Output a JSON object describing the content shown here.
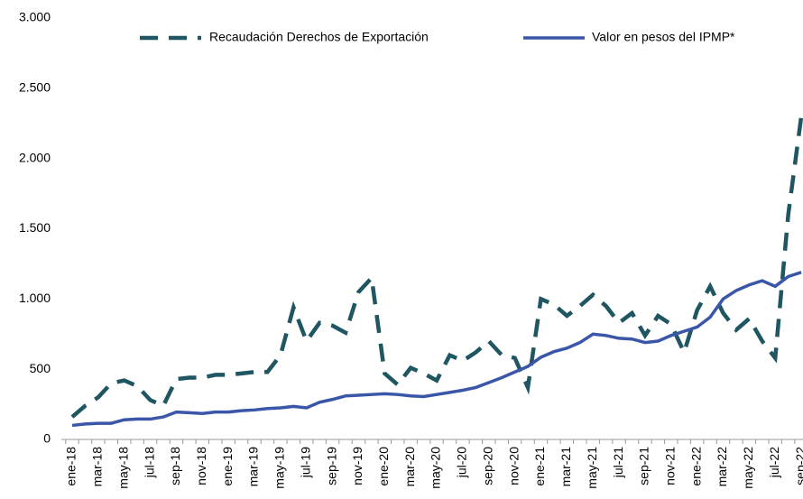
{
  "chart_data": {
    "type": "line",
    "categories": [
      "ene-18",
      null,
      "mar-18",
      null,
      "may-18",
      null,
      "jul-18",
      null,
      "sep-18",
      null,
      "nov-18",
      null,
      "ene-19",
      null,
      "mar-19",
      null,
      "may-19",
      null,
      "jul-19",
      null,
      "sep-19",
      null,
      "nov-19",
      null,
      "ene-20",
      null,
      "mar-20",
      null,
      "may-20",
      null,
      "jul-20",
      null,
      "sep-20",
      null,
      "nov-20",
      null,
      "ene-21",
      null,
      "mar-21",
      null,
      "may-21",
      null,
      "jul-21",
      null,
      "sep-21",
      null,
      "nov-21",
      null,
      "ene-22",
      null,
      "mar-22",
      null,
      "may-22",
      null,
      "jul-22",
      null,
      "sep-22"
    ],
    "series": [
      {
        "name": "Recaudación Derechos de Exportación",
        "color": "#1f5661",
        "dashed": true,
        "values": [
          160,
          240,
          300,
          400,
          420,
          380,
          280,
          240,
          430,
          440,
          440,
          460,
          460,
          470,
          480,
          480,
          600,
          940,
          700,
          830,
          810,
          760,
          1050,
          1150,
          470,
          390,
          510,
          470,
          420,
          600,
          560,
          620,
          700,
          600,
          580,
          370,
          1000,
          960,
          880,
          950,
          1030,
          950,
          830,
          900,
          740,
          880,
          820,
          620,
          920,
          1090,
          900,
          780,
          860,
          700,
          580,
          1600,
          2300
        ]
      },
      {
        "name": "Valor en pesos del IPMP*",
        "color": "#3a56a8",
        "dashed": false,
        "values": [
          100,
          110,
          115,
          115,
          140,
          145,
          145,
          160,
          195,
          190,
          185,
          195,
          195,
          205,
          210,
          220,
          225,
          235,
          225,
          265,
          285,
          310,
          315,
          320,
          325,
          320,
          310,
          305,
          320,
          335,
          350,
          370,
          405,
          440,
          480,
          520,
          585,
          625,
          650,
          690,
          750,
          740,
          720,
          715,
          690,
          700,
          740,
          770,
          800,
          870,
          1000,
          1060,
          1100,
          1130,
          1090,
          1160,
          1190
        ]
      }
    ],
    "ylim": [
      0,
      3000
    ],
    "yticks": [
      0,
      500,
      {
        "value": 1000,
        "label": "1.000"
      },
      {
        "value": 1500,
        "label": "1.500"
      },
      {
        "value": 2000,
        "label": "2.000"
      },
      {
        "value": 2500,
        "label": "2.500"
      },
      {
        "value": 3000,
        "label": "3.000"
      }
    ],
    "grid": false,
    "legend": "top"
  }
}
